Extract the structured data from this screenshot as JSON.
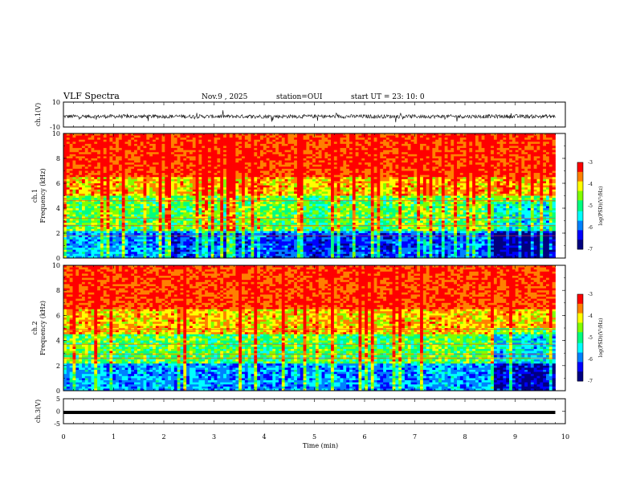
{
  "header": {
    "title": "VLF Spectra",
    "date": "Nov.9 , 2025",
    "station": "station=OUI",
    "start": "start UT = 23: 10: 0"
  },
  "chart_data": [
    {
      "type": "line",
      "panel": "ch1-waveform",
      "ylabel": "ch.1(V)",
      "ylim": [
        -10,
        10
      ],
      "yticks": [
        "10",
        "-10"
      ],
      "xlim": [
        0,
        10
      ],
      "series": [
        {
          "values_note": "noise",
          "baseline": -1.5,
          "amplitude": 3
        }
      ]
    },
    {
      "type": "heatmap",
      "panel": "ch1-spectrogram",
      "ylabel": "ch.1\nFrequency (kHz)",
      "ylim": [
        0,
        10
      ],
      "yticks": [
        "10",
        "8",
        "6",
        "4",
        "2",
        "0"
      ],
      "xlim": [
        0,
        10
      ],
      "data_end_min": 9.8,
      "colorbar": {
        "label": "log(PSD)(V²/Hz)",
        "range": [
          -7,
          -3
        ],
        "ticks": [
          "-3",
          "-4",
          "-5",
          "-6",
          "-7"
        ]
      }
    },
    {
      "type": "heatmap",
      "panel": "ch2-spectrogram",
      "ylabel": "ch.2\nFrequency (kHz)",
      "ylim": [
        0,
        10
      ],
      "yticks": [
        "10",
        "8",
        "6",
        "4",
        "2",
        "0"
      ],
      "xlim": [
        0,
        10
      ],
      "data_end_min": 9.8,
      "colorbar": {
        "label": "log(PSD)(V²/Hz)",
        "range": [
          -7,
          -3
        ],
        "ticks": [
          "-3",
          "-4",
          "-5",
          "-6",
          "-7"
        ]
      }
    },
    {
      "type": "line",
      "panel": "ch3-waveform",
      "ylabel": "ch.3(V)",
      "ylim": [
        -5,
        5
      ],
      "yticks": [
        "5",
        "0",
        "-5"
      ],
      "xlim": [
        0,
        10
      ],
      "series": [
        {
          "values_note": "flat",
          "level": -0.5
        }
      ]
    }
  ],
  "xaxis": {
    "label": "Time (min)",
    "ticks": [
      "0",
      "1",
      "2",
      "3",
      "4",
      "5",
      "6",
      "7",
      "8",
      "9",
      "10"
    ]
  },
  "colors": {
    "ink": "#000000",
    "colormap": [
      "#000080",
      "#0000ff",
      "#0080ff",
      "#00ffff",
      "#00ff80",
      "#80ff00",
      "#ffff00",
      "#ff8000",
      "#ff0000"
    ]
  }
}
